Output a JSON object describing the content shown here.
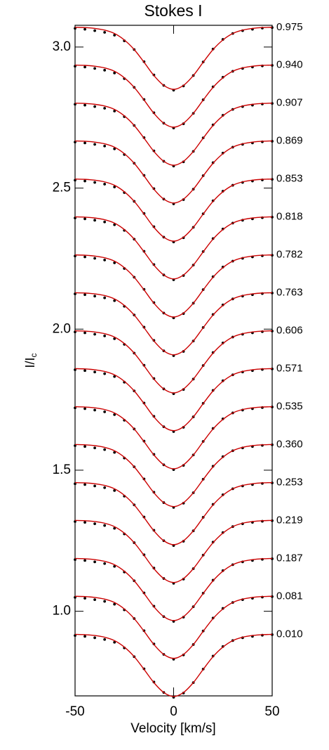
{
  "chart_data": {
    "type": "line",
    "title": "Stokes I",
    "x_label": "Velocity [km/s]",
    "y_label": "I/I",
    "y_label_subscript": "c",
    "xlim": [
      -50,
      50
    ],
    "xticks": [
      -50,
      0,
      50
    ],
    "ylim": [
      0.7,
      3.077
    ],
    "yticks": [
      {
        "value": 1,
        "label": "1.0"
      },
      1.5,
      {
        "value": 2,
        "label": "2.0"
      },
      2.5,
      {
        "value": 3,
        "label": "3.0"
      }
    ],
    "observed_color": "#000000",
    "model_color": "#cc0000",
    "x": [
      -50,
      -45,
      -40,
      -35,
      -30,
      -25,
      -20,
      -15,
      -10,
      -5,
      0,
      5,
      10,
      15,
      20,
      25,
      30,
      35,
      40,
      45,
      50
    ],
    "profiles": [
      {
        "phase": "0.010",
        "model": [
          0.918,
          0.917,
          0.914,
          0.908,
          0.896,
          0.873,
          0.839,
          0.794,
          0.747,
          0.712,
          0.698,
          0.712,
          0.747,
          0.794,
          0.839,
          0.873,
          0.896,
          0.908,
          0.914,
          0.917,
          0.918
        ],
        "observed": [
          0.914,
          0.911,
          0.906,
          0.9,
          0.89,
          0.87,
          0.839,
          0.796,
          0.749,
          0.712,
          0.695,
          0.71,
          0.747,
          0.795,
          0.841,
          0.875,
          0.896,
          0.906,
          0.911,
          0.915,
          0.917
        ]
      },
      {
        "phase": "0.081",
        "model": [
          1.053,
          1.052,
          1.049,
          1.043,
          1.031,
          1.008,
          0.974,
          0.929,
          0.882,
          0.847,
          0.833,
          0.847,
          0.882,
          0.929,
          0.974,
          1.008,
          1.031,
          1.043,
          1.049,
          1.052,
          1.053
        ],
        "observed": [
          1.049,
          1.046,
          1.041,
          1.035,
          1.025,
          1.005,
          0.974,
          0.931,
          0.884,
          0.847,
          0.83,
          0.845,
          0.882,
          0.93,
          0.976,
          1.01,
          1.031,
          1.041,
          1.046,
          1.05,
          1.052
        ]
      },
      {
        "phase": "0.187",
        "model": [
          1.187,
          1.186,
          1.183,
          1.177,
          1.165,
          1.142,
          1.108,
          1.063,
          1.016,
          0.981,
          0.967,
          0.981,
          1.016,
          1.063,
          1.108,
          1.142,
          1.165,
          1.177,
          1.183,
          1.186,
          1.187
        ],
        "observed": [
          1.183,
          1.18,
          1.175,
          1.169,
          1.159,
          1.139,
          1.108,
          1.065,
          1.018,
          0.981,
          0.964,
          0.979,
          1.016,
          1.064,
          1.11,
          1.144,
          1.165,
          1.175,
          1.18,
          1.184,
          1.186
        ]
      },
      {
        "phase": "0.219",
        "model": [
          1.322,
          1.321,
          1.318,
          1.312,
          1.3,
          1.277,
          1.243,
          1.198,
          1.151,
          1.116,
          1.102,
          1.116,
          1.151,
          1.198,
          1.243,
          1.277,
          1.3,
          1.312,
          1.318,
          1.321,
          1.322
        ],
        "observed": [
          1.318,
          1.315,
          1.31,
          1.304,
          1.294,
          1.274,
          1.243,
          1.2,
          1.153,
          1.116,
          1.099,
          1.114,
          1.151,
          1.199,
          1.245,
          1.279,
          1.3,
          1.31,
          1.315,
          1.319,
          1.321
        ]
      },
      {
        "phase": "0.253",
        "model": [
          1.456,
          1.455,
          1.452,
          1.446,
          1.434,
          1.411,
          1.377,
          1.332,
          1.285,
          1.25,
          1.236,
          1.25,
          1.285,
          1.332,
          1.377,
          1.411,
          1.434,
          1.446,
          1.452,
          1.455,
          1.456
        ],
        "observed": [
          1.452,
          1.449,
          1.444,
          1.438,
          1.428,
          1.408,
          1.377,
          1.334,
          1.287,
          1.25,
          1.233,
          1.248,
          1.285,
          1.333,
          1.379,
          1.413,
          1.434,
          1.444,
          1.449,
          1.453,
          1.455
        ]
      },
      {
        "phase": "0.360",
        "model": [
          1.591,
          1.59,
          1.587,
          1.581,
          1.569,
          1.546,
          1.512,
          1.467,
          1.42,
          1.385,
          1.371,
          1.385,
          1.42,
          1.467,
          1.512,
          1.546,
          1.569,
          1.581,
          1.587,
          1.59,
          1.591
        ],
        "observed": [
          1.587,
          1.584,
          1.579,
          1.573,
          1.563,
          1.543,
          1.512,
          1.469,
          1.422,
          1.385,
          1.368,
          1.383,
          1.42,
          1.468,
          1.514,
          1.548,
          1.569,
          1.579,
          1.584,
          1.588,
          1.59
        ]
      },
      {
        "phase": "0.535",
        "model": [
          1.725,
          1.724,
          1.721,
          1.715,
          1.703,
          1.68,
          1.646,
          1.601,
          1.554,
          1.519,
          1.505,
          1.519,
          1.554,
          1.601,
          1.646,
          1.68,
          1.703,
          1.715,
          1.721,
          1.724,
          1.725
        ],
        "observed": [
          1.721,
          1.718,
          1.713,
          1.707,
          1.697,
          1.677,
          1.646,
          1.603,
          1.556,
          1.519,
          1.502,
          1.517,
          1.554,
          1.602,
          1.648,
          1.682,
          1.703,
          1.713,
          1.718,
          1.722,
          1.724
        ]
      },
      {
        "phase": "0.571",
        "model": [
          1.86,
          1.859,
          1.856,
          1.85,
          1.838,
          1.815,
          1.781,
          1.736,
          1.689,
          1.654,
          1.64,
          1.654,
          1.689,
          1.736,
          1.781,
          1.815,
          1.838,
          1.85,
          1.856,
          1.859,
          1.86
        ],
        "observed": [
          1.856,
          1.853,
          1.848,
          1.842,
          1.832,
          1.812,
          1.781,
          1.738,
          1.691,
          1.654,
          1.637,
          1.652,
          1.689,
          1.737,
          1.783,
          1.817,
          1.838,
          1.848,
          1.853,
          1.857,
          1.859
        ]
      },
      {
        "phase": "0.606",
        "model": [
          1.994,
          1.993,
          1.99,
          1.984,
          1.972,
          1.949,
          1.915,
          1.87,
          1.823,
          1.788,
          1.774,
          1.788,
          1.823,
          1.87,
          1.915,
          1.949,
          1.972,
          1.984,
          1.99,
          1.993,
          1.994
        ],
        "observed": [
          1.99,
          1.987,
          1.982,
          1.976,
          1.966,
          1.946,
          1.915,
          1.872,
          1.825,
          1.788,
          1.771,
          1.786,
          1.823,
          1.871,
          1.917,
          1.951,
          1.972,
          1.982,
          1.987,
          1.991,
          1.993
        ]
      },
      {
        "phase": "0.763",
        "model": [
          2.129,
          2.128,
          2.125,
          2.119,
          2.107,
          2.084,
          2.05,
          2.005,
          1.958,
          1.923,
          1.909,
          1.923,
          1.958,
          2.005,
          2.05,
          2.084,
          2.107,
          2.119,
          2.125,
          2.128,
          2.129
        ],
        "observed": [
          2.125,
          2.122,
          2.117,
          2.111,
          2.101,
          2.081,
          2.05,
          2.007,
          1.96,
          1.923,
          1.906,
          1.921,
          1.958,
          2.006,
          2.052,
          2.086,
          2.107,
          2.117,
          2.122,
          2.126,
          2.128
        ]
      },
      {
        "phase": "0.782",
        "model": [
          2.263,
          2.262,
          2.259,
          2.253,
          2.241,
          2.218,
          2.184,
          2.139,
          2.092,
          2.057,
          2.043,
          2.057,
          2.092,
          2.139,
          2.184,
          2.218,
          2.241,
          2.253,
          2.259,
          2.262,
          2.263
        ],
        "observed": [
          2.259,
          2.256,
          2.251,
          2.245,
          2.235,
          2.215,
          2.184,
          2.141,
          2.094,
          2.057,
          2.04,
          2.055,
          2.092,
          2.14,
          2.186,
          2.22,
          2.241,
          2.251,
          2.256,
          2.26,
          2.262
        ]
      },
      {
        "phase": "0.818",
        "model": [
          2.398,
          2.397,
          2.394,
          2.388,
          2.376,
          2.353,
          2.319,
          2.274,
          2.227,
          2.192,
          2.178,
          2.192,
          2.227,
          2.274,
          2.319,
          2.353,
          2.376,
          2.388,
          2.394,
          2.397,
          2.398
        ],
        "observed": [
          2.394,
          2.391,
          2.386,
          2.38,
          2.37,
          2.35,
          2.319,
          2.276,
          2.229,
          2.192,
          2.175,
          2.19,
          2.227,
          2.275,
          2.321,
          2.355,
          2.376,
          2.386,
          2.391,
          2.395,
          2.397
        ]
      },
      {
        "phase": "0.853",
        "model": [
          2.532,
          2.531,
          2.528,
          2.522,
          2.51,
          2.487,
          2.453,
          2.408,
          2.361,
          2.326,
          2.312,
          2.326,
          2.361,
          2.408,
          2.453,
          2.487,
          2.51,
          2.522,
          2.528,
          2.531,
          2.532
        ],
        "observed": [
          2.528,
          2.525,
          2.52,
          2.514,
          2.504,
          2.484,
          2.453,
          2.41,
          2.363,
          2.326,
          2.309,
          2.324,
          2.361,
          2.409,
          2.455,
          2.489,
          2.51,
          2.52,
          2.525,
          2.529,
          2.531
        ]
      },
      {
        "phase": "0.869",
        "model": [
          2.667,
          2.666,
          2.663,
          2.657,
          2.645,
          2.622,
          2.588,
          2.543,
          2.496,
          2.461,
          2.447,
          2.461,
          2.496,
          2.543,
          2.588,
          2.622,
          2.645,
          2.657,
          2.663,
          2.666,
          2.667
        ],
        "observed": [
          2.663,
          2.66,
          2.655,
          2.649,
          2.639,
          2.619,
          2.588,
          2.545,
          2.498,
          2.461,
          2.444,
          2.459,
          2.496,
          2.544,
          2.59,
          2.624,
          2.645,
          2.655,
          2.66,
          2.664,
          2.666
        ]
      },
      {
        "phase": "0.907",
        "model": [
          2.801,
          2.8,
          2.797,
          2.791,
          2.779,
          2.756,
          2.722,
          2.677,
          2.63,
          2.595,
          2.581,
          2.595,
          2.63,
          2.677,
          2.722,
          2.756,
          2.779,
          2.791,
          2.797,
          2.8,
          2.801
        ],
        "observed": [
          2.797,
          2.794,
          2.789,
          2.783,
          2.773,
          2.753,
          2.722,
          2.679,
          2.632,
          2.595,
          2.578,
          2.593,
          2.63,
          2.678,
          2.724,
          2.758,
          2.779,
          2.789,
          2.794,
          2.798,
          2.8
        ]
      },
      {
        "phase": "0.940",
        "model": [
          2.936,
          2.935,
          2.932,
          2.926,
          2.914,
          2.891,
          2.857,
          2.812,
          2.765,
          2.73,
          2.716,
          2.73,
          2.765,
          2.812,
          2.857,
          2.891,
          2.914,
          2.926,
          2.932,
          2.935,
          2.936
        ],
        "observed": [
          2.932,
          2.929,
          2.924,
          2.918,
          2.908,
          2.888,
          2.857,
          2.814,
          2.767,
          2.73,
          2.713,
          2.728,
          2.765,
          2.813,
          2.859,
          2.893,
          2.914,
          2.924,
          2.929,
          2.933,
          2.935
        ]
      },
      {
        "phase": "0.975",
        "model": [
          3.07,
          3.069,
          3.066,
          3.06,
          3.048,
          3.025,
          2.991,
          2.946,
          2.899,
          2.864,
          2.85,
          2.864,
          2.899,
          2.946,
          2.991,
          3.025,
          3.048,
          3.06,
          3.066,
          3.069,
          3.07
        ],
        "observed": [
          3.066,
          3.063,
          3.058,
          3.052,
          3.042,
          3.022,
          2.991,
          2.948,
          2.901,
          2.864,
          2.847,
          2.862,
          2.899,
          2.947,
          2.993,
          3.027,
          3.048,
          3.058,
          3.063,
          3.067,
          3.069
        ]
      }
    ]
  }
}
